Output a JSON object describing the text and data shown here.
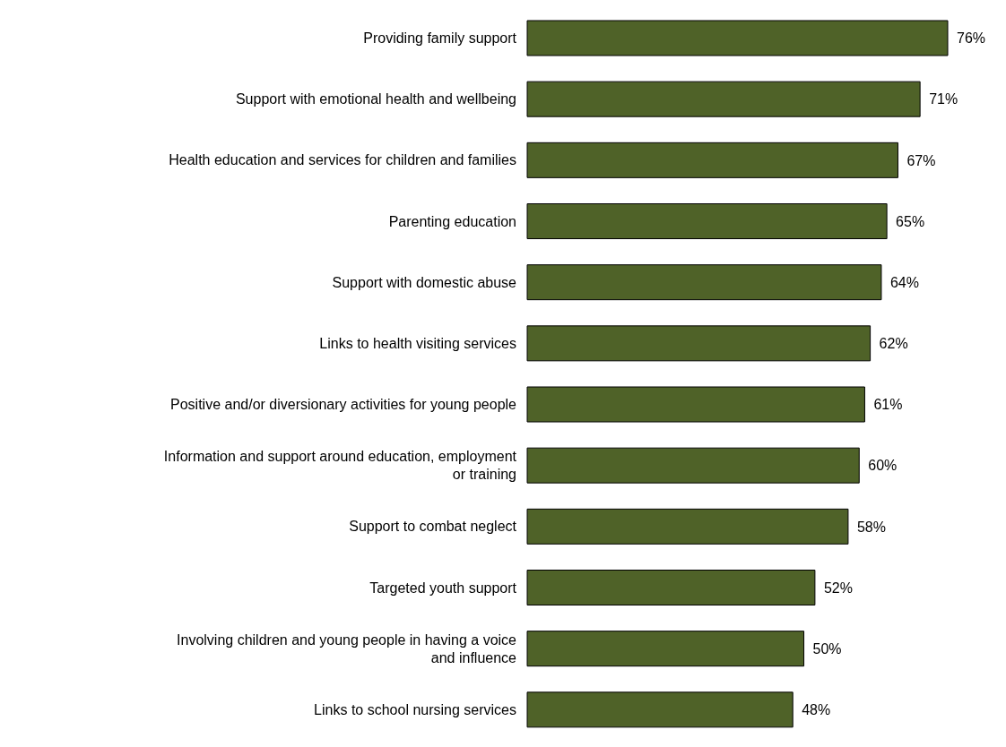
{
  "chart_data": {
    "type": "bar",
    "orientation": "horizontal",
    "categories": [
      "Providing family support",
      "Support with emotional health and wellbeing",
      "Health education and services for children and families",
      "Parenting education",
      "Support with domestic abuse",
      "Links to health visiting services",
      "Positive and/or diversionary activities for young people",
      "Information and support around education, employment or training",
      "Support to combat neglect",
      "Targeted youth support",
      "Involving children and young people in having a voice and influence",
      "Links to school nursing services"
    ],
    "values": [
      76,
      71,
      67,
      65,
      64,
      62,
      61,
      60,
      58,
      52,
      50,
      48
    ],
    "value_labels": [
      "76%",
      "71%",
      "67%",
      "65%",
      "64%",
      "62%",
      "61%",
      "60%",
      "58%",
      "52%",
      "50%",
      "48%"
    ],
    "color": "#4f6228",
    "grid": false,
    "legend": false
  }
}
